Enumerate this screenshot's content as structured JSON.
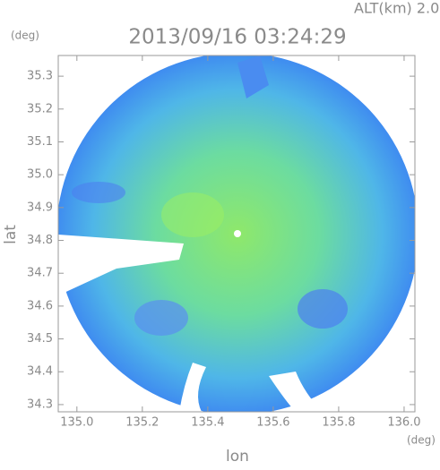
{
  "header": {
    "altitude": "ALT(km) 2.0",
    "timestamp": "2013/09/16 03:24:29"
  },
  "axes": {
    "x": {
      "label": "lon",
      "unit": "(deg)",
      "xlim": [
        134.943,
        136.033
      ],
      "xticks": [
        {
          "value": 135.0,
          "label": "135.0"
        },
        {
          "value": 135.2,
          "label": "135.2"
        },
        {
          "value": 135.4,
          "label": "135.4"
        },
        {
          "value": 135.6,
          "label": "135.6"
        },
        {
          "value": 135.8,
          "label": "135.8"
        },
        {
          "value": 136.0,
          "label": "136.0"
        }
      ]
    },
    "y": {
      "label": "lat",
      "unit": "(deg)",
      "ylim": [
        34.278,
        35.363
      ],
      "yticks": [
        {
          "value": 34.3,
          "label": "34.3"
        },
        {
          "value": 34.4,
          "label": "34.4"
        },
        {
          "value": 34.5,
          "label": "34.5"
        },
        {
          "value": 34.6,
          "label": "34.6"
        },
        {
          "value": 34.7,
          "label": "34.7"
        },
        {
          "value": 34.8,
          "label": "34.8"
        },
        {
          "value": 34.9,
          "label": "34.9"
        },
        {
          "value": 35.0,
          "label": "35.0"
        },
        {
          "value": 35.1,
          "label": "35.1"
        },
        {
          "value": 35.2,
          "label": "35.2"
        },
        {
          "value": 35.3,
          "label": "35.3"
        }
      ]
    }
  }
}
